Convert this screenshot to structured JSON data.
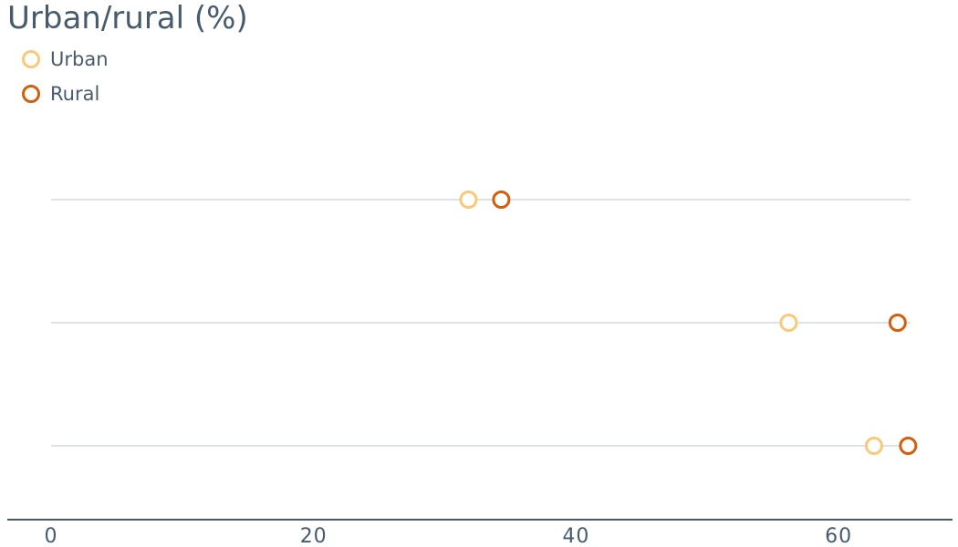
{
  "chart_data": {
    "type": "dot-plot",
    "title": "Urban/rural (%)",
    "xlabel": "",
    "ylabel": "",
    "xlim": [
      0,
      68
    ],
    "x_ticks": [
      "0",
      "20",
      "40",
      "60"
    ],
    "rows": 3,
    "series": [
      {
        "name": "Urban",
        "values": [
          31.8,
          56.2,
          62.7
        ],
        "color": "#f9c97a"
      },
      {
        "name": "Rural",
        "values": [
          34.3,
          64.5,
          65.3
        ],
        "color": "#d35f0c"
      }
    ],
    "grid_line_color": "#dde2e7",
    "axis_color": "#475b6d",
    "legend_position": "top-left"
  }
}
